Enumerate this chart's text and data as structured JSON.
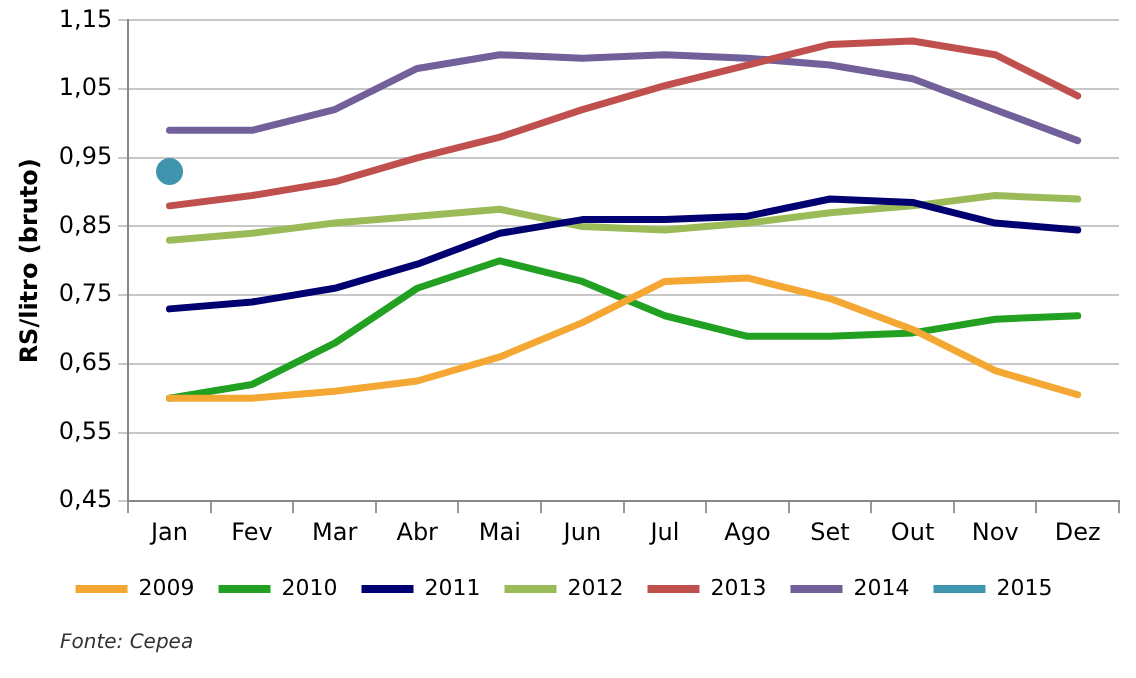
{
  "chart_data": {
    "type": "line",
    "ylabel": "RS/litro (bruto)",
    "categories": [
      "Jan",
      "Fev",
      "Mar",
      "Abr",
      "Mai",
      "Jun",
      "Jul",
      "Ago",
      "Set",
      "Out",
      "Nov",
      "Dez"
    ],
    "series": [
      {
        "name": "2009",
        "color": "#f5a733",
        "values": [
          0.6,
          0.6,
          0.61,
          0.625,
          0.66,
          0.71,
          0.77,
          0.775,
          0.745,
          0.7,
          0.64,
          0.605
        ]
      },
      {
        "name": "2010",
        "color": "#22a022",
        "values": [
          0.6,
          0.62,
          0.68,
          0.76,
          0.8,
          0.77,
          0.72,
          0.69,
          0.69,
          0.695,
          0.715,
          0.72
        ]
      },
      {
        "name": "2011",
        "color": "#000070",
        "values": [
          0.73,
          0.74,
          0.76,
          0.795,
          0.84,
          0.86,
          0.86,
          0.865,
          0.89,
          0.885,
          0.855,
          0.845
        ]
      },
      {
        "name": "2012",
        "color": "#9bbb59",
        "values": [
          0.83,
          0.84,
          0.855,
          0.865,
          0.875,
          0.85,
          0.845,
          0.855,
          0.87,
          0.88,
          0.895,
          0.89
        ]
      },
      {
        "name": "2013",
        "color": "#c0504d",
        "values": [
          0.88,
          0.895,
          0.915,
          0.95,
          0.98,
          1.02,
          1.055,
          1.085,
          1.115,
          1.12,
          1.1,
          1.04
        ]
      },
      {
        "name": "2014",
        "color": "#72609a",
        "values": [
          0.99,
          0.99,
          1.02,
          1.08,
          1.1,
          1.095,
          1.1,
          1.095,
          1.085,
          1.065,
          1.02,
          0.975
        ]
      },
      {
        "name": "2015",
        "color": "#3f95ad",
        "marker": "circle",
        "values": [
          0.93,
          null,
          null,
          null,
          null,
          null,
          null,
          null,
          null,
          null,
          null,
          null
        ]
      }
    ],
    "ylim": [
      0.45,
      1.15
    ],
    "yticks": [
      {
        "value": 0.45,
        "label": "0,45"
      },
      {
        "value": 0.55,
        "label": "0,55"
      },
      {
        "value": 0.65,
        "label": "0,65"
      },
      {
        "value": 0.75,
        "label": "0,75"
      },
      {
        "value": 0.85,
        "label": "0,85"
      },
      {
        "value": 0.95,
        "label": "0,95"
      },
      {
        "value": 1.05,
        "label": "1,05"
      },
      {
        "value": 1.15,
        "label": "1,15"
      }
    ],
    "grid": "y",
    "legend": "bottom",
    "marker": "none",
    "line_style": "solid",
    "annotations": [
      "Fonte: Cepea"
    ]
  }
}
